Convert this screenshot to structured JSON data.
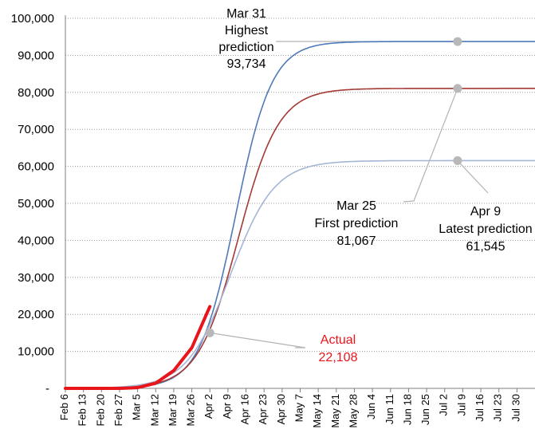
{
  "chart_data": {
    "type": "line",
    "title": "",
    "xlabel": "",
    "ylabel": "",
    "ylim": [
      0,
      100000
    ],
    "yticks": [
      "-",
      "10,000",
      "20,000",
      "30,000",
      "40,000",
      "50,000",
      "60,000",
      "70,000",
      "80,000",
      "90,000",
      "100,000"
    ],
    "xticks": [
      "Feb 6",
      "Feb 13",
      "Feb 20",
      "Feb 27",
      "Mar 5",
      "Mar 12",
      "Mar 19",
      "Mar 26",
      "Apr 2",
      "Apr 9",
      "Apr 16",
      "Apr 23",
      "Apr 30",
      "May 7",
      "May 14",
      "May 21",
      "May 28",
      "Jun 4",
      "Jun 11",
      "Jun 18",
      "Jun 25",
      "Jul 2",
      "Jul 9",
      "Jul 16",
      "Jul 23",
      "Jul 30"
    ],
    "grid": "horizontal dotted",
    "series": [
      {
        "id": "highest",
        "color": "#4f7ab8",
        "final_value": 93734,
        "midpoint_day": 66,
        "rate": 0.142
      },
      {
        "id": "first",
        "color": "#a33a35",
        "final_value": 81067,
        "midpoint_day": 67,
        "rate": 0.128
      },
      {
        "id": "latest",
        "color": "#a3b6d6",
        "final_value": 61545,
        "midpoint_day": 64,
        "rate": 0.118
      },
      {
        "id": "actual",
        "color": "#e8151b",
        "points": [
          [
            0,
            0
          ],
          [
            21,
            0
          ],
          [
            28,
            200
          ],
          [
            35,
            1400
          ],
          [
            42,
            4800
          ],
          [
            49,
            11000
          ],
          [
            56,
            22108
          ]
        ]
      }
    ],
    "annotations": [
      {
        "id": "highest",
        "lines": [
          "Mar 31",
          "Highest",
          "prediction",
          "93,734"
        ],
        "dot": [
          152,
          93734
        ]
      },
      {
        "id": "first",
        "lines": [
          "Mar 25",
          "First prediction",
          "81,067"
        ],
        "dot": [
          152,
          81067
        ]
      },
      {
        "id": "latest",
        "lines": [
          "Apr 9",
          "Latest prediction",
          "61,545"
        ],
        "dot": [
          152,
          61545
        ]
      },
      {
        "id": "actual",
        "lines": [
          "Actual",
          "22,108"
        ],
        "dot": [
          56,
          15000
        ],
        "red": true
      }
    ]
  }
}
